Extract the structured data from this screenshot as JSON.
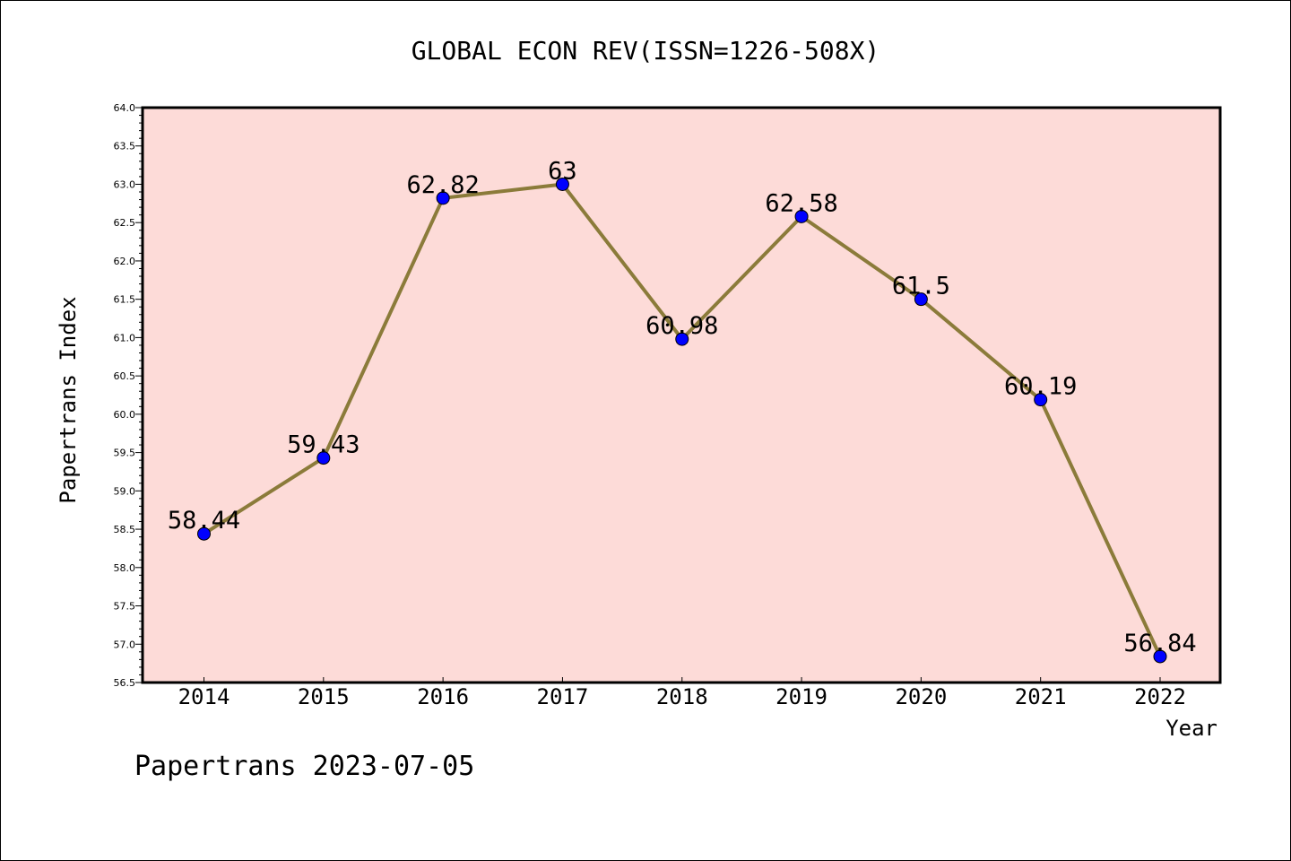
{
  "chart_data": {
    "type": "line",
    "title": "GLOBAL ECON REV(ISSN=1226-508X)",
    "xlabel": "Year",
    "ylabel": "Papertrans Index",
    "categories": [
      "2014",
      "2015",
      "2016",
      "2017",
      "2018",
      "2019",
      "2020",
      "2021",
      "2022"
    ],
    "values": [
      58.44,
      59.43,
      62.82,
      63,
      60.98,
      62.58,
      61.5,
      60.19,
      56.84
    ],
    "data_labels": [
      "58.44",
      "59.43",
      "62.82",
      "63",
      "60.98",
      "62.58",
      "61.5",
      "60.19",
      "56.84"
    ],
    "ylim": [
      56.5,
      64.0
    ],
    "yticks": [
      "56.5",
      "57.0",
      "57.5",
      "58.0",
      "58.5",
      "59.0",
      "59.5",
      "60.0",
      "60.5",
      "61.0",
      "61.5",
      "62.0",
      "62.5",
      "63.0",
      "63.5",
      "64.0"
    ],
    "grid": false,
    "line_color": "#8b7b3a",
    "marker_color": "#0000ff",
    "plot_background": "#fddbd8"
  },
  "footer": "Papertrans 2023-07-05"
}
